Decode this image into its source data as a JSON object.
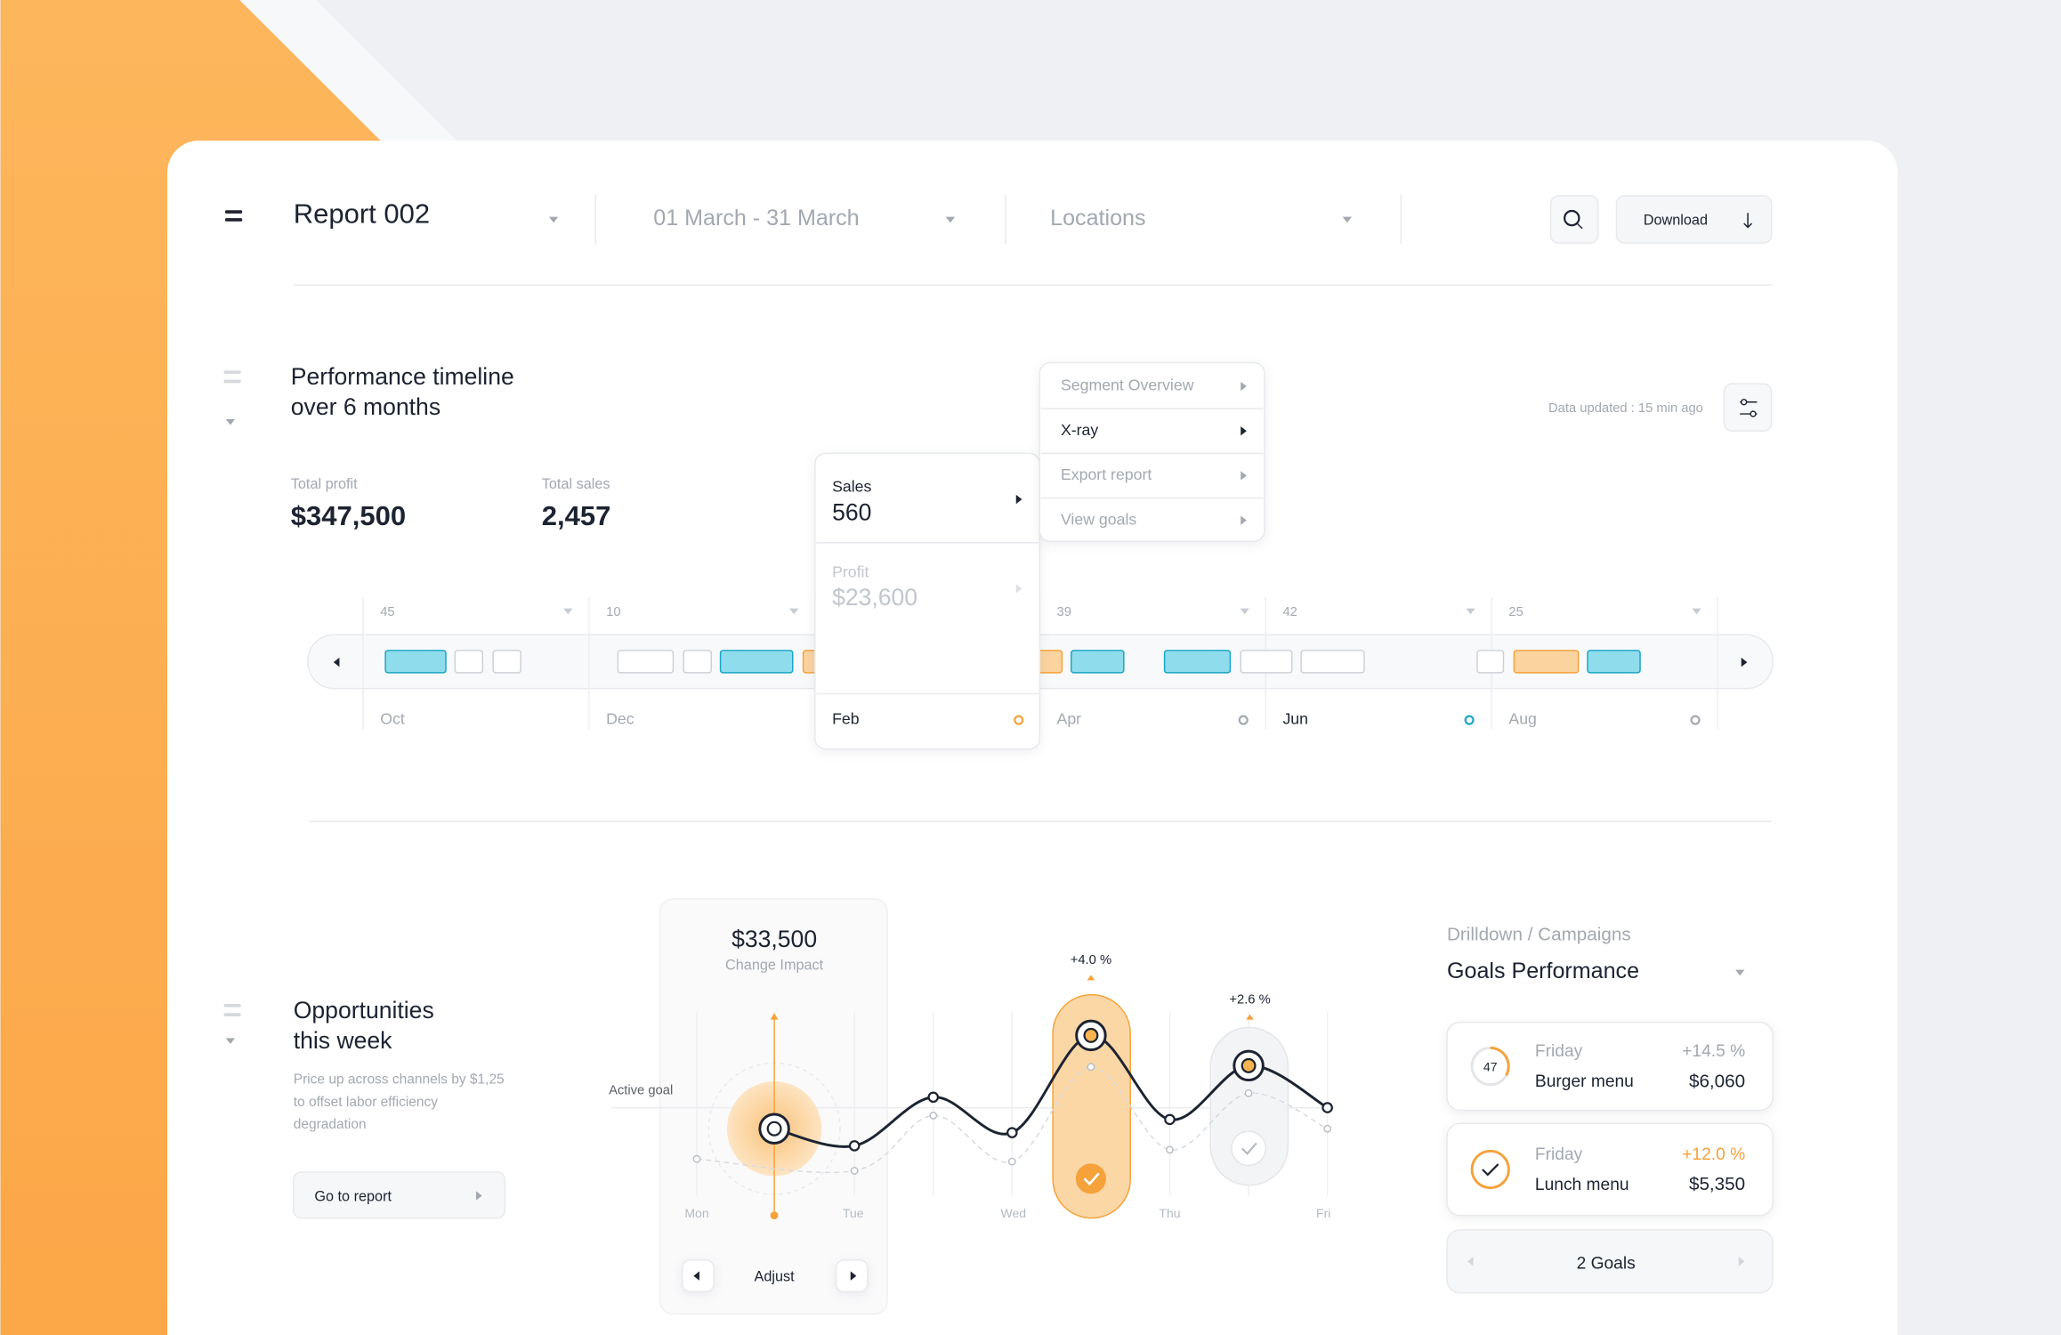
{
  "header": {
    "title": "Report 002",
    "date_range": "01 March - 31 March",
    "location": "Locations",
    "download": "Download"
  },
  "performance": {
    "title_lines": [
      "Performance timeline",
      "over 6 months"
    ],
    "updated": "Data updated : 15 min ago",
    "stats": [
      {
        "label": "Total profit",
        "value": "$347,500"
      },
      {
        "label": "Total sales",
        "value": "2,457"
      }
    ],
    "menu": [
      "Segment Overview",
      "X-ray",
      "Export report",
      "View goals"
    ],
    "popup": {
      "sales_label": "Sales",
      "sales": "560",
      "profit_label": "Profit",
      "profit": "$23,600"
    },
    "columns": [
      {
        "count": "45",
        "month": "Oct"
      },
      {
        "count": "10",
        "month": "Dec"
      },
      {
        "month": "Feb"
      },
      {
        "count": "39",
        "month": "Apr"
      },
      {
        "count": "42",
        "month": "Jun"
      },
      {
        "count": "25",
        "month": "Aug"
      }
    ]
  },
  "opportunities": {
    "title_lines": [
      "Opportunities",
      "this week"
    ],
    "description_lines": [
      "Price up across channels by $1,25",
      "to offset labor efficiency",
      "degradation"
    ],
    "button": "Go to report",
    "impact": {
      "value": "$33,500",
      "label": "Change Impact"
    },
    "adjust": "Adjust",
    "active_goal": "Active goal",
    "peaks": [
      "+4.0 %",
      "+2.6 %"
    ],
    "days": [
      "Mon",
      "Tue",
      "Wed",
      "Thu",
      "Fri"
    ]
  },
  "goals": {
    "breadcrumb": "Drilldown / Campaigns",
    "title": "Goals Performance",
    "items": [
      {
        "badge": "47",
        "day": "Friday",
        "name": "Burger menu",
        "change": "+14.5 %",
        "amount": "$6,060"
      },
      {
        "day": "Friday",
        "name": "Lunch menu",
        "change": "+12.0 %",
        "amount": "$5,350"
      }
    ],
    "footer": "2 Goals"
  }
}
